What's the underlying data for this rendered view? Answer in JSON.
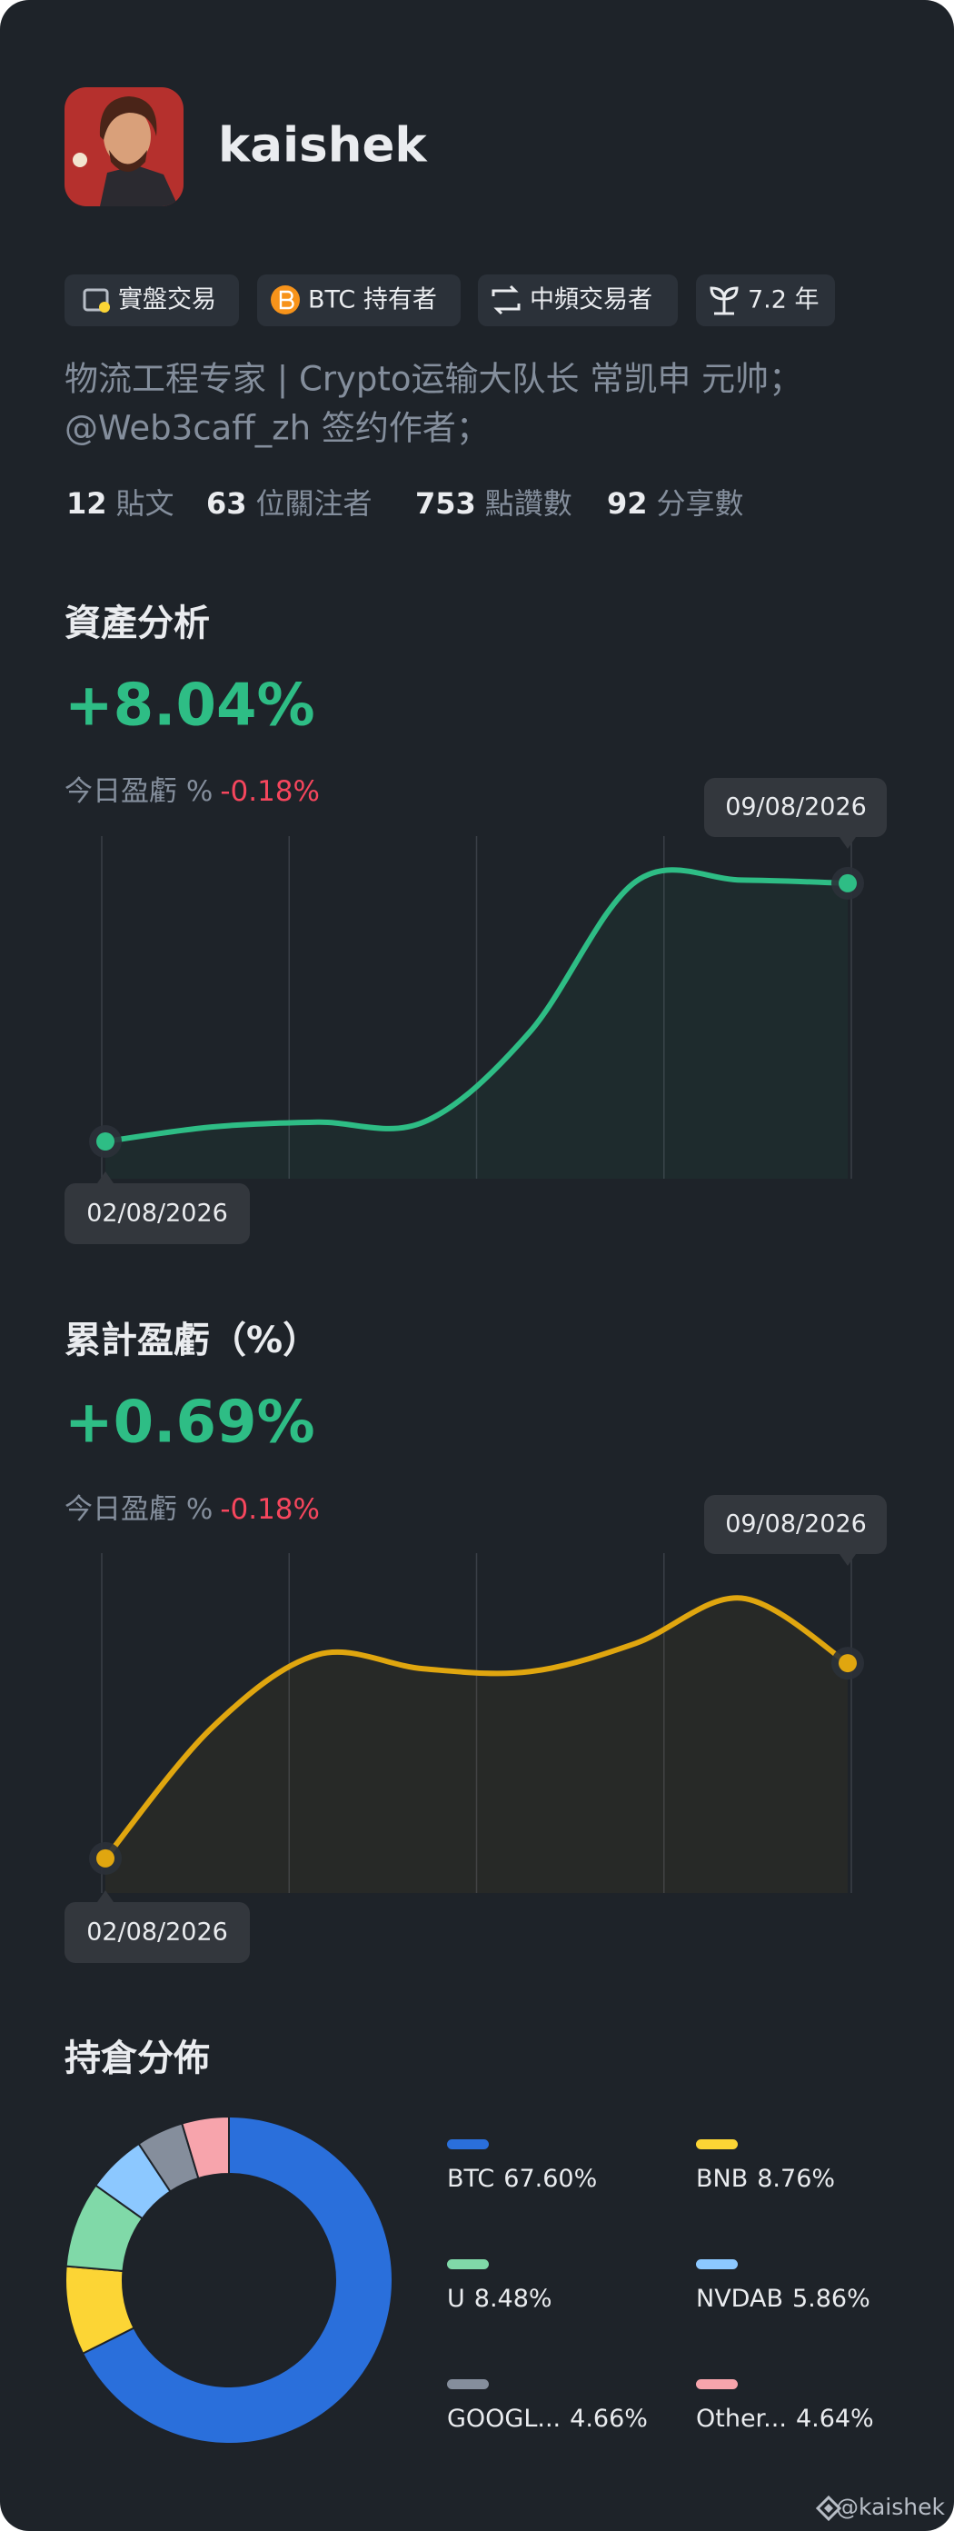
{
  "profile": {
    "name": "kaishek",
    "badges": [
      "實盤交易",
      "BTC 持有者",
      "中頻交易者",
      "7.2 年"
    ],
    "bio": [
      "物流工程专家 | Crypto运输大队长 常凯申 元帅；",
      "@Web3caff_zh 签约作者；"
    ],
    "stats": [
      {
        "value": 12,
        "label": "貼文"
      },
      {
        "value": 63,
        "label": "位關注者"
      },
      {
        "value": 753,
        "label": "點讚數"
      },
      {
        "value": 92,
        "label": "分享數"
      }
    ]
  },
  "chart_data": [
    {
      "type": "line",
      "title": "資產分析",
      "headline": "+8.04%",
      "today_label": "今日盈虧 %",
      "today_value": "-0.18%",
      "categories": [
        "02/08/2026",
        null,
        null,
        null,
        null,
        null,
        null,
        "09/08/2026"
      ],
      "values": [
        0,
        0.45,
        0.6,
        0.6,
        3.4,
        8.09,
        8.14,
        8.04
      ],
      "color": "#2ebd85",
      "ylim": [
        -1.5,
        9
      ]
    },
    {
      "type": "line",
      "title": "累計盈虧（%）",
      "headline": "+0.69%",
      "today_label": "今日盈虧 %",
      "today_value": "-0.18%",
      "categories": [
        "02/08/2026",
        null,
        null,
        null,
        null,
        null,
        null,
        "09/08/2026"
      ],
      "values": [
        0,
        0.46,
        0.72,
        0.67,
        0.66,
        0.76,
        0.92,
        0.69
      ],
      "color": "#e0a60f",
      "ylim": [
        -0.1,
        1.05
      ]
    },
    {
      "type": "pie",
      "title": "持倉分佈",
      "categories": [
        "BTC",
        "BNB",
        "U",
        "NVDAB",
        "GOOGL...",
        "Other..."
      ],
      "values": [
        67.6,
        8.76,
        8.48,
        5.86,
        4.66,
        4.64
      ],
      "value_labels": [
        "67.60%",
        "8.76%",
        "8.48%",
        "5.86%",
        "4.66%",
        "4.64%"
      ],
      "colors": [
        "#2a6fdb",
        "#fcd535",
        "#80d9a8",
        "#8cc8ff",
        "#858e9c",
        "#f7a4ac"
      ]
    }
  ],
  "footer": "@kaishek"
}
